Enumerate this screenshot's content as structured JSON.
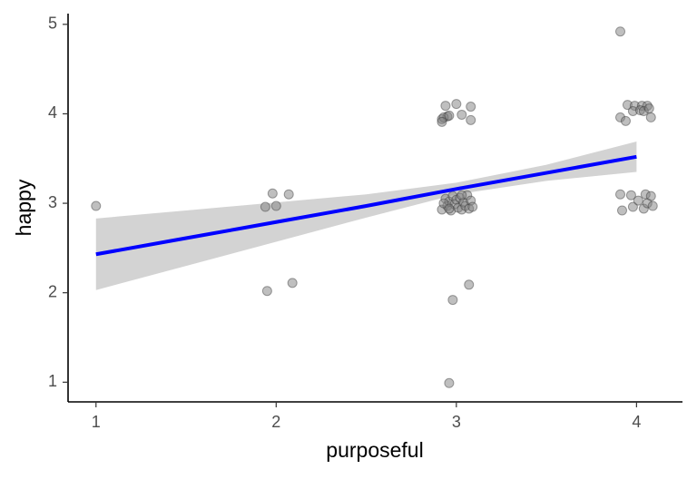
{
  "chart_data": {
    "type": "scatter",
    "x_label": "purposeful",
    "y_label": "happy",
    "x": [
      1.0,
      1.94,
      1.98,
      2.0,
      2.07,
      1.95,
      2.09,
      2.96,
      2.98,
      3.07,
      2.94,
      3.0,
      3.08,
      2.92,
      2.95,
      2.93,
      2.96,
      3.03,
      3.08,
      2.92,
      2.92,
      2.94,
      2.95,
      2.96,
      2.97,
      2.98,
      2.99,
      3.0,
      3.01,
      3.02,
      3.03,
      3.04,
      3.05,
      3.06,
      3.07,
      3.08,
      3.09,
      2.93,
      3.03,
      2.96,
      3.91,
      3.95,
      3.99,
      4.03,
      4.06,
      3.91,
      3.94,
      3.98,
      4.02,
      4.04,
      4.08,
      4.07,
      3.91,
      3.97,
      4.05,
      4.08,
      3.92,
      3.98,
      4.04,
      4.06,
      4.09,
      4.01
    ],
    "y": [
      2.97,
      2.96,
      3.11,
      2.97,
      3.1,
      2.02,
      2.11,
      0.99,
      1.92,
      2.09,
      4.09,
      4.11,
      4.08,
      3.94,
      3.97,
      3.96,
      3.98,
      3.99,
      3.93,
      3.91,
      2.93,
      3.05,
      2.97,
      3.02,
      2.92,
      3.08,
      2.99,
      3.04,
      2.95,
      3.06,
      2.93,
      3.01,
      2.97,
      3.09,
      2.94,
      3.03,
      2.96,
      3.0,
      3.09,
      2.94,
      4.92,
      4.1,
      4.09,
      4.09,
      4.09,
      3.96,
      3.92,
      4.03,
      4.04,
      4.03,
      3.96,
      4.06,
      3.1,
      3.09,
      3.1,
      3.08,
      2.92,
      2.96,
      2.94,
      3.0,
      2.97,
      3.03
    ],
    "trend": {
      "color": "#0000ff",
      "band_color": "#d3d3d3",
      "x": [
        1,
        1.5,
        2,
        2.5,
        3,
        3.5,
        4
      ],
      "y": [
        2.43,
        2.61,
        2.79,
        2.97,
        3.16,
        3.34,
        3.52
      ],
      "lower": [
        2.03,
        2.3,
        2.57,
        2.84,
        3.1,
        3.25,
        3.35
      ],
      "upper": [
        2.83,
        2.92,
        3.01,
        3.1,
        3.23,
        3.43,
        3.69
      ]
    },
    "xlim": [
      0.845,
      4.255
    ],
    "ylim": [
      0.78,
      5.12
    ],
    "xticks": [
      1,
      2,
      3,
      4
    ],
    "yticks": [
      1,
      2,
      3,
      4,
      5
    ]
  }
}
